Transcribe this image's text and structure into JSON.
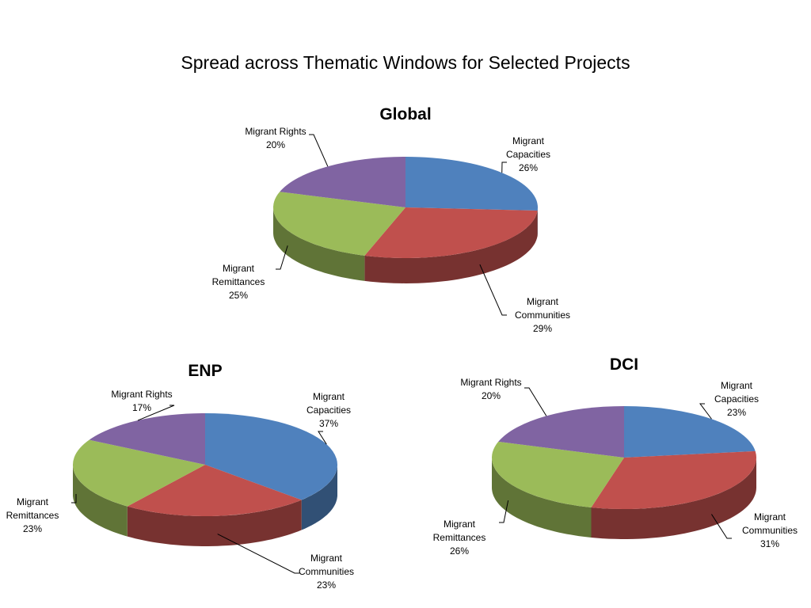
{
  "title": "Spread across Thematic Windows for Selected Projects",
  "chart_data": [
    {
      "type": "pie",
      "title": "Global",
      "categories": [
        "Migrant Capacities",
        "Migrant Communities",
        "Migrant Remittances",
        "Migrant Rights"
      ],
      "values": [
        26,
        29,
        25,
        20
      ],
      "value_labels": [
        "26%",
        "29%",
        "25%",
        "20%"
      ],
      "colors": [
        "#4f81bd",
        "#c0504d",
        "#9bbb59",
        "#8064a2"
      ]
    },
    {
      "type": "pie",
      "title": "ENP",
      "categories": [
        "Migrant Capacities",
        "Migrant Communities",
        "Migrant Remittances",
        "Migrant Rights"
      ],
      "values": [
        37,
        23,
        23,
        17
      ],
      "value_labels": [
        "37%",
        "23%",
        "23%",
        "17%"
      ],
      "colors": [
        "#4f81bd",
        "#c0504d",
        "#9bbb59",
        "#8064a2"
      ]
    },
    {
      "type": "pie",
      "title": "DCI",
      "categories": [
        "Migrant Capacities",
        "Migrant Communities",
        "Migrant Remittances",
        "Migrant Rights"
      ],
      "values": [
        23,
        31,
        26,
        20
      ],
      "value_labels": [
        "23%",
        "31%",
        "26%",
        "20%"
      ],
      "colors": [
        "#4f81bd",
        "#c0504d",
        "#9bbb59",
        "#8064a2"
      ]
    }
  ]
}
